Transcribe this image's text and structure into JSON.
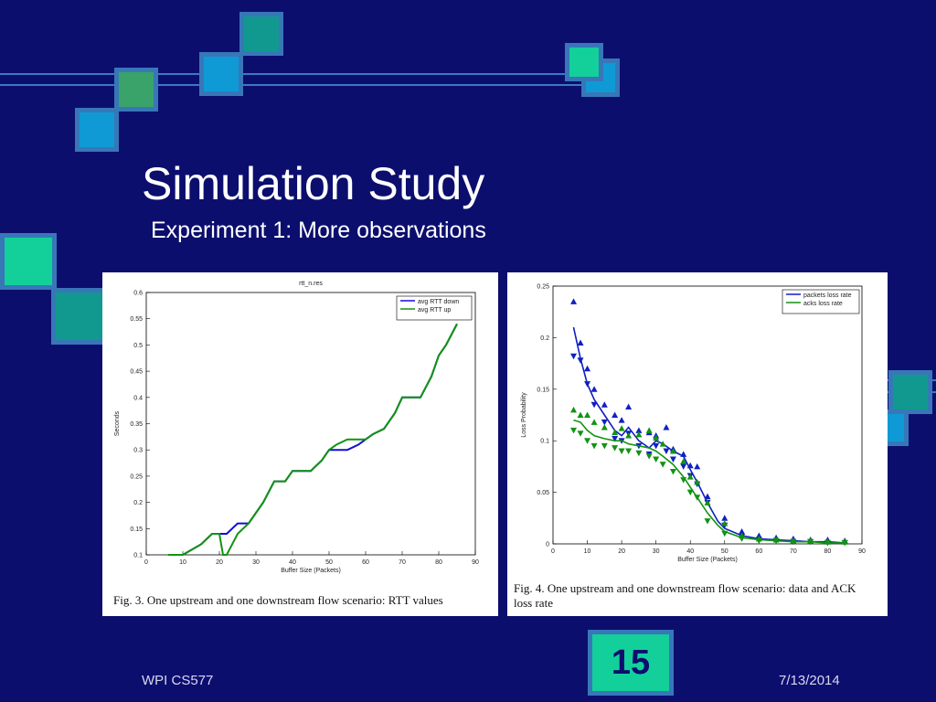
{
  "slide": {
    "title": "Simulation Study",
    "subtitle": "Experiment 1: More observations",
    "footer_left": "WPI CS577",
    "footer_right": "7/13/2014",
    "page_number": "15",
    "colors": {
      "background": "#0c0e6e",
      "accent_square": "#13cf9a",
      "square_border": "#3777b8"
    }
  },
  "figures": {
    "left": {
      "caption": "Fig. 3.    One upstream and one downstream flow scenario: RTT values"
    },
    "right": {
      "caption_line1": "Fig. 4.    One upstream and one downstream flow scenario: data and ACK",
      "caption_line2": "loss rate"
    }
  },
  "chart_data": [
    {
      "type": "line",
      "title": "rtt_n.res",
      "xlabel": "Buffer Size (Packets)",
      "ylabel": "Seconds",
      "xlim": [
        0,
        90
      ],
      "ylim": [
        0.1,
        0.6
      ],
      "xticks": [
        0,
        10,
        20,
        30,
        40,
        50,
        60,
        70,
        80,
        90
      ],
      "yticks": [
        0.1,
        0.15,
        0.2,
        0.25,
        0.3,
        0.35,
        0.4,
        0.45,
        0.5,
        0.55,
        0.6
      ],
      "legend_position": "top-right",
      "series": [
        {
          "name": "avg RTT down",
          "color": "#1010d0",
          "x": [
            6,
            10,
            15,
            18,
            20,
            22,
            25,
            28,
            32,
            35,
            38,
            40,
            45,
            48,
            50,
            52,
            55,
            58,
            60,
            62,
            65,
            68,
            70,
            72,
            75,
            78,
            80,
            82,
            85
          ],
          "y": [
            0.1,
            0.1,
            0.12,
            0.14,
            0.14,
            0.14,
            0.16,
            0.16,
            0.2,
            0.24,
            0.24,
            0.26,
            0.26,
            0.28,
            0.3,
            0.3,
            0.3,
            0.31,
            0.32,
            0.33,
            0.34,
            0.37,
            0.4,
            0.4,
            0.4,
            0.44,
            0.48,
            0.5,
            0.54
          ]
        },
        {
          "name": "avg RTT up",
          "color": "#119411",
          "x": [
            6,
            10,
            15,
            18,
            20,
            21,
            22,
            25,
            28,
            32,
            35,
            38,
            40,
            45,
            48,
            50,
            52,
            55,
            58,
            60,
            62,
            65,
            68,
            70,
            72,
            75,
            78,
            80,
            82,
            85
          ],
          "y": [
            0.1,
            0.1,
            0.12,
            0.14,
            0.14,
            0.1,
            0.1,
            0.14,
            0.16,
            0.2,
            0.24,
            0.24,
            0.26,
            0.26,
            0.28,
            0.3,
            0.31,
            0.32,
            0.32,
            0.32,
            0.33,
            0.34,
            0.37,
            0.4,
            0.4,
            0.4,
            0.44,
            0.48,
            0.5,
            0.54
          ]
        }
      ]
    },
    {
      "type": "scatter",
      "title": "",
      "xlabel": "Buffer Size (Packets)",
      "ylabel": "Loss Probability",
      "xlim": [
        0,
        90
      ],
      "ylim": [
        0,
        0.25
      ],
      "xticks": [
        0,
        10,
        20,
        30,
        40,
        50,
        60,
        70,
        80,
        90
      ],
      "yticks": [
        0,
        0.05,
        0.1,
        0.15,
        0.2,
        0.25
      ],
      "legend_position": "top-right",
      "series": [
        {
          "name": "packets loss rate",
          "color": "#1020c0",
          "curve_x": [
            6,
            8,
            10,
            12,
            15,
            18,
            20,
            22,
            25,
            28,
            30,
            32,
            35,
            38,
            40,
            42,
            45,
            48,
            50,
            55,
            60,
            65,
            70,
            75,
            80,
            85
          ],
          "curve_y": [
            0.21,
            0.18,
            0.155,
            0.14,
            0.125,
            0.11,
            0.105,
            0.113,
            0.1,
            0.093,
            0.1,
            0.097,
            0.09,
            0.085,
            0.072,
            0.06,
            0.04,
            0.022,
            0.015,
            0.008,
            0.005,
            0.004,
            0.003,
            0.002,
            0.002,
            0.001
          ],
          "up_x": [
            6,
            8,
            10,
            12,
            15,
            18,
            20,
            22,
            25,
            28,
            30,
            33,
            35,
            38,
            40,
            42,
            45,
            50,
            55,
            60,
            65,
            70,
            75,
            80,
            85
          ],
          "up_y": [
            0.235,
            0.195,
            0.17,
            0.15,
            0.135,
            0.125,
            0.12,
            0.133,
            0.11,
            0.108,
            0.105,
            0.113,
            0.092,
            0.087,
            0.076,
            0.075,
            0.046,
            0.025,
            0.012,
            0.008,
            0.006,
            0.005,
            0.004,
            0.004,
            0.003
          ],
          "down_x": [
            6,
            8,
            10,
            12,
            15,
            18,
            20,
            22,
            25,
            28,
            30,
            33,
            35,
            38,
            40,
            42,
            45,
            50,
            55,
            60,
            65,
            70,
            75,
            80,
            85
          ],
          "down_y": [
            0.182,
            0.178,
            0.155,
            0.135,
            0.118,
            0.102,
            0.1,
            0.107,
            0.095,
            0.087,
            0.095,
            0.09,
            0.082,
            0.075,
            0.066,
            0.058,
            0.04,
            0.018,
            0.007,
            0.004,
            0.003,
            0.002,
            0.002,
            0.001,
            0.001
          ]
        },
        {
          "name": "acks loss rate",
          "color": "#119411",
          "curve_x": [
            6,
            8,
            10,
            12,
            15,
            18,
            20,
            22,
            25,
            28,
            30,
            32,
            35,
            38,
            40,
            42,
            45,
            48,
            50,
            55,
            60,
            65,
            70,
            75,
            80,
            85
          ],
          "curve_y": [
            0.12,
            0.118,
            0.11,
            0.105,
            0.102,
            0.1,
            0.1,
            0.097,
            0.095,
            0.093,
            0.09,
            0.085,
            0.077,
            0.065,
            0.055,
            0.045,
            0.03,
            0.018,
            0.012,
            0.006,
            0.004,
            0.003,
            0.002,
            0.002,
            0.001,
            0.001
          ],
          "up_x": [
            6,
            8,
            10,
            12,
            15,
            18,
            20,
            22,
            25,
            28,
            30,
            32,
            35,
            38,
            40,
            42,
            45,
            50,
            55,
            60,
            65,
            70,
            75,
            80,
            85
          ],
          "up_y": [
            0.13,
            0.125,
            0.125,
            0.118,
            0.113,
            0.108,
            0.112,
            0.105,
            0.106,
            0.11,
            0.103,
            0.097,
            0.09,
            0.08,
            0.065,
            0.06,
            0.04,
            0.02,
            0.008,
            0.005,
            0.004,
            0.003,
            0.003,
            0.002,
            0.002
          ],
          "down_x": [
            6,
            8,
            10,
            12,
            15,
            18,
            20,
            22,
            25,
            28,
            30,
            32,
            35,
            38,
            40,
            42,
            45,
            50,
            55,
            60,
            65,
            70,
            75,
            80,
            85
          ],
          "down_y": [
            0.11,
            0.107,
            0.1,
            0.095,
            0.095,
            0.093,
            0.09,
            0.09,
            0.088,
            0.085,
            0.082,
            0.077,
            0.07,
            0.062,
            0.05,
            0.045,
            0.022,
            0.01,
            0.005,
            0.003,
            0.003,
            0.002,
            0.002,
            0.001,
            0.001
          ]
        }
      ]
    }
  ]
}
